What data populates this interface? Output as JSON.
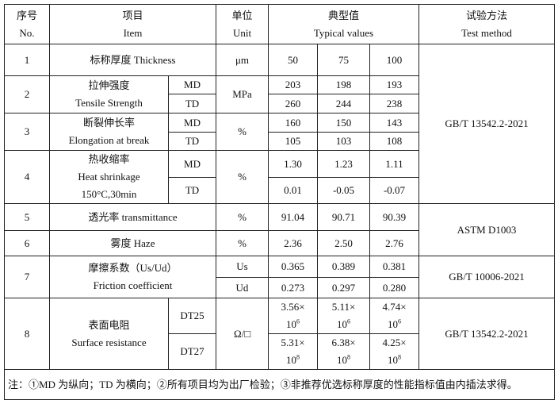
{
  "header": {
    "no_cn": "序号",
    "no_en": "No.",
    "item_cn": "项目",
    "item_en": "Item",
    "unit_cn": "单位",
    "unit_en": "Unit",
    "values_cn": "典型值",
    "values_en": "Typical values",
    "method_cn": "试验方法",
    "method_en": "Test method"
  },
  "rows": [
    {
      "no": "1",
      "item": "标称厚度 Thickness",
      "unit": "μm",
      "values": [
        "50",
        "75",
        "100"
      ]
    },
    {
      "no": "2",
      "item_cn": "拉伸强度",
      "item_en": "Tensile Strength",
      "unit": "MPa",
      "sub": [
        {
          "dir": "MD",
          "values": [
            "203",
            "198",
            "193"
          ]
        },
        {
          "dir": "TD",
          "values": [
            "260",
            "244",
            "238"
          ]
        }
      ]
    },
    {
      "no": "3",
      "item_cn": "断裂伸长率",
      "item_en": "Elongation at break",
      "unit": "%",
      "sub": [
        {
          "dir": "MD",
          "values": [
            "160",
            "150",
            "143"
          ]
        },
        {
          "dir": "TD",
          "values": [
            "105",
            "103",
            "108"
          ]
        }
      ]
    },
    {
      "no": "4",
      "item_cn": "热收缩率",
      "item_en": "Heat shrinkage",
      "item_cond": "150°C,30min",
      "unit": "%",
      "sub": [
        {
          "dir": "MD",
          "values": [
            "1.30",
            "1.23",
            "1.11"
          ]
        },
        {
          "dir": "TD",
          "values": [
            "0.01",
            "-0.05",
            "-0.07"
          ]
        }
      ]
    },
    {
      "no": "5",
      "item": "透光率  transmittance",
      "unit": "%",
      "values": [
        "91.04",
        "90.71",
        "90.39"
      ]
    },
    {
      "no": "6",
      "item": "雾度  Haze",
      "unit": "%",
      "values": [
        "2.36",
        "2.50",
        "2.76"
      ]
    },
    {
      "no": "7",
      "item_cn": "摩擦系数（Us/Ud）",
      "item_en": "Friction coefficient",
      "sub": [
        {
          "dir": "Us",
          "values": [
            "0.365",
            "0.389",
            "0.381"
          ]
        },
        {
          "dir": "Ud",
          "values": [
            "0.273",
            "0.297",
            "0.280"
          ]
        }
      ]
    },
    {
      "no": "8",
      "item_cn": "表面电阻",
      "item_en": "Surface resistance",
      "unit": "Ω/□",
      "sub": [
        {
          "dir": "DT25",
          "values": [
            "3.56×",
            "5.11×",
            "4.74×"
          ],
          "exp": "6"
        },
        {
          "dir": "DT27",
          "values": [
            "5.31×",
            "6.38×",
            "4.25×"
          ],
          "exp": "8"
        }
      ]
    }
  ],
  "methods": {
    "m1": "GB/T 13542.2-2021",
    "m2": "ASTM D1003",
    "m3": "GB/T 10006-2021",
    "m4": "GB/T 13542.2-2021"
  },
  "ten": "10",
  "note": "注：①MD 为纵向；TD 为横向；②所有项目均为出厂检验；③非推荐优选标称厚度的性能指标值由内插法求得。"
}
